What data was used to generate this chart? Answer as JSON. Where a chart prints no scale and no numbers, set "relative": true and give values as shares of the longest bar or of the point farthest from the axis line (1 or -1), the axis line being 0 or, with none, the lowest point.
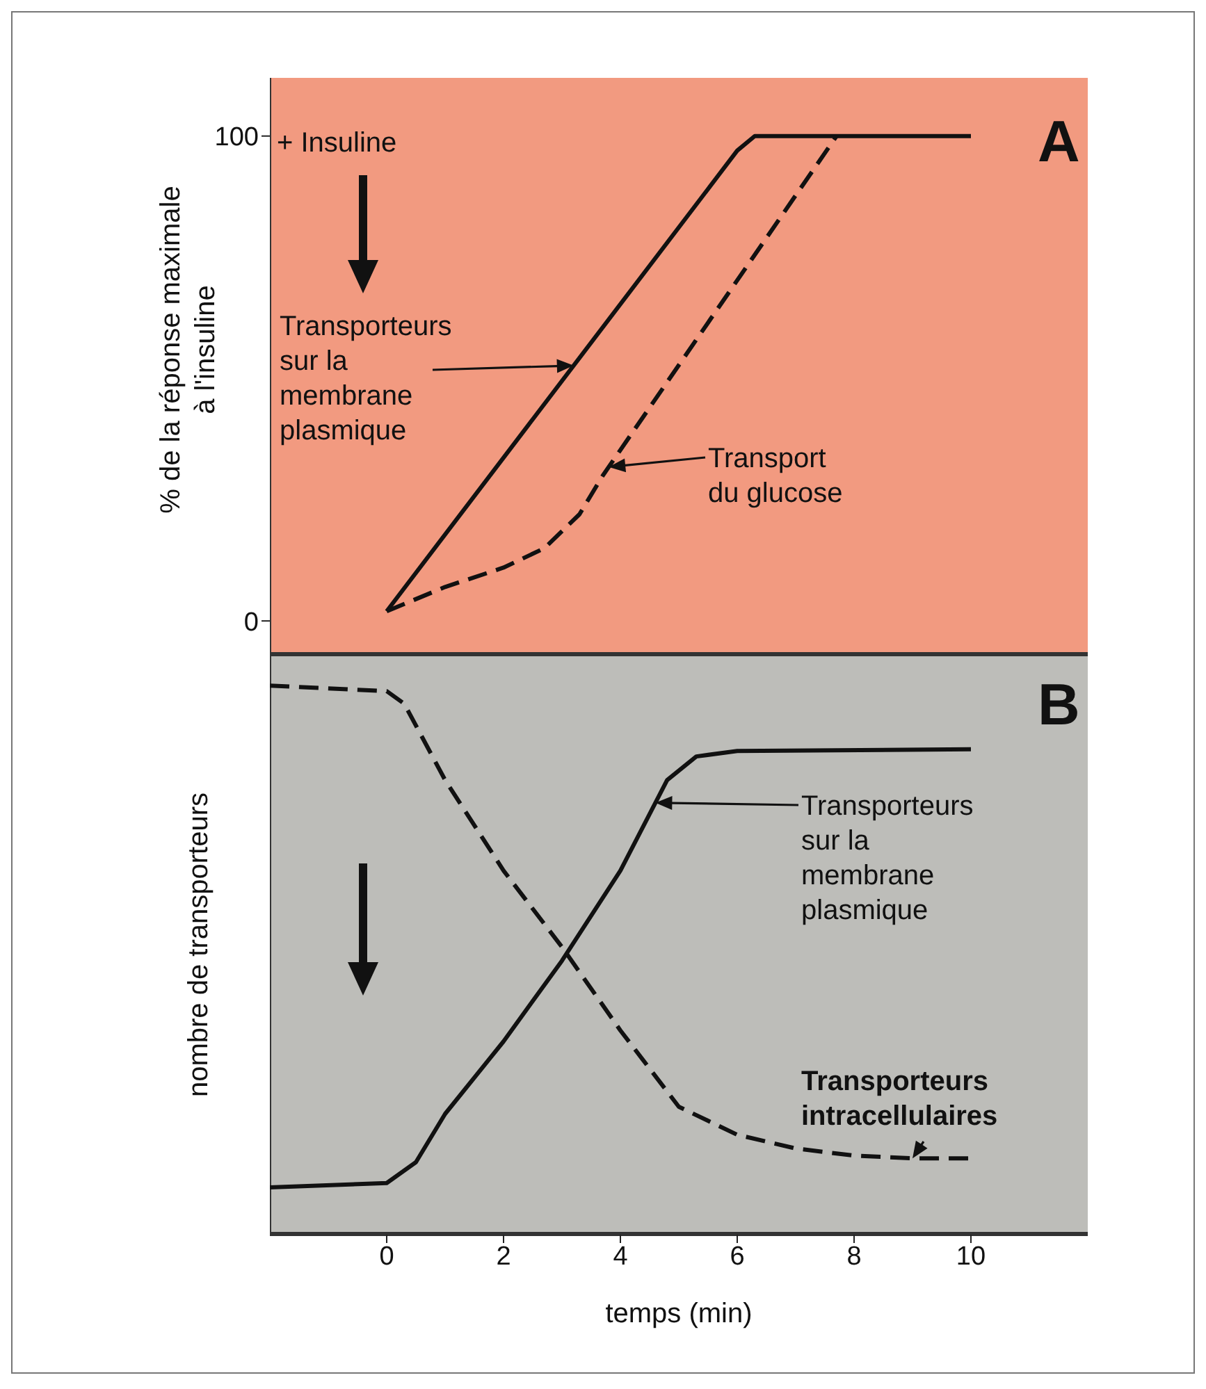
{
  "chart_data": [
    {
      "type": "line",
      "ylabel": "% de la réponse maximale\nà l'insuline",
      "annotations": [
        "+ Insuline",
        "A"
      ],
      "xlim": [
        -2,
        12
      ],
      "xticks": [
        0,
        2,
        4,
        6,
        8,
        10
      ],
      "ylim": [
        -7,
        112
      ],
      "yticks": [
        0,
        100
      ],
      "tick_labels": "y",
      "series": [
        {
          "name": "Transporteurs\nsur la\nmembrane\nplasmique",
          "color": "#111111",
          "line_style": "solid",
          "x": [
            0,
            6,
            6.3,
            10
          ],
          "values": [
            2,
            97,
            100,
            100
          ]
        },
        {
          "name": "Transport\ndu glucose",
          "color": "#111111",
          "line_style": "dashed",
          "x": [
            0,
            1,
            2,
            2.7,
            3.3,
            3.7,
            7.7
          ],
          "values": [
            2,
            7,
            11,
            15,
            22,
            30,
            100
          ]
        }
      ]
    },
    {
      "type": "line",
      "ylabel": "nombre de transporteurs",
      "xlabel": "temps (min)",
      "annotations": [
        "B"
      ],
      "xlim": [
        -2,
        12
      ],
      "xticks": [
        0,
        2,
        4,
        6,
        8,
        10
      ],
      "relative": true,
      "tick_labels": "x",
      "series": [
        {
          "name": "Transporteurs\nsur la\nmembrane\nplasmique",
          "color": "#111111",
          "line_style": "solid",
          "x": [
            -2,
            0,
            0.5,
            1,
            2,
            3,
            4,
            4.8,
            5.3,
            6,
            10
          ],
          "values": [
            0.086,
            0.094,
            0.132,
            0.22,
            0.352,
            0.499,
            0.663,
            0.828,
            0.871,
            0.881,
            0.884
          ]
        },
        {
          "name": "Transporteurs\nintracellulaires",
          "color": "#111111",
          "line_style": "dashed",
          "x": [
            -2,
            0,
            0.3,
            1,
            2,
            3,
            4,
            5,
            6,
            7,
            8,
            9,
            10
          ],
          "values": [
            1,
            0.99,
            0.967,
            0.828,
            0.663,
            0.524,
            0.372,
            0.233,
            0.182,
            0.157,
            0.144,
            0.139,
            0.139
          ]
        }
      ]
    }
  ]
}
